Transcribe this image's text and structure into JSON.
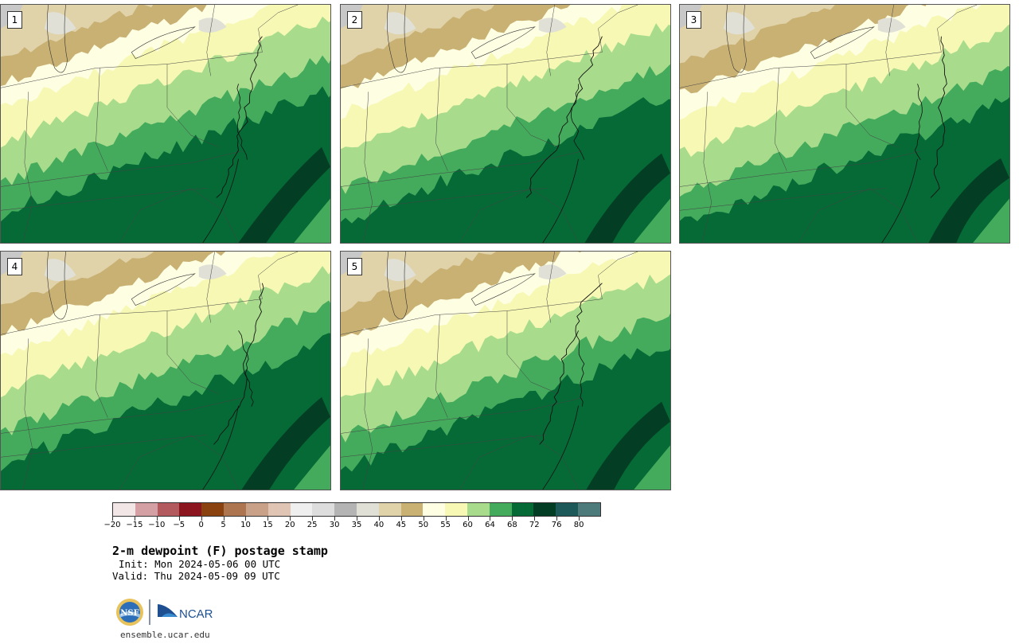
{
  "panels": [
    {
      "label": "1",
      "variant": 0
    },
    {
      "label": "2",
      "variant": 1
    },
    {
      "label": "3",
      "variant": 2
    },
    {
      "label": "4",
      "variant": 3
    },
    {
      "label": "5",
      "variant": 4
    }
  ],
  "colorbar": {
    "colors": [
      "#f3e6e6",
      "#d4a0a4",
      "#b35a5f",
      "#8c1620",
      "#8a4310",
      "#ad7650",
      "#c9a088",
      "#e0c4b4",
      "#efefef",
      "#dddddd",
      "#b4b4b4",
      "#e0e0d6",
      "#e0d2a9",
      "#c9b174",
      "#fefee2",
      "#f6f8b4",
      "#a8dc8c",
      "#44aa5c",
      "#056a36",
      "#033e24",
      "#1c5958",
      "#4d7b7c"
    ],
    "ticks": [
      "−20",
      "−15",
      "−10",
      "−5",
      "0",
      "5",
      "10",
      "15",
      "20",
      "25",
      "30",
      "35",
      "40",
      "45",
      "50",
      "55",
      "60",
      "64",
      "68",
      "72",
      "76",
      "80"
    ]
  },
  "title": "2-m dewpoint (F) postage stamp",
  "init_text": "Init: Mon 2024-05-06 00 UTC",
  "valid_text": "Valid: Thu 2024-05-09 09 UTC",
  "logos": {
    "nsf": "NSF",
    "ncar": "NCAR"
  },
  "url": "ensemble.ucar.edu"
}
